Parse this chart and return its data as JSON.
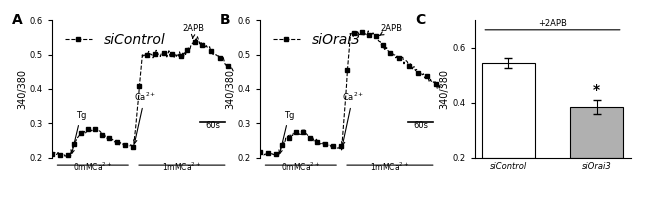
{
  "panel_A": {
    "label": "A",
    "legend": "siControl",
    "ylim": [
      0.2,
      0.6
    ],
    "yticks": [
      0.2,
      0.3,
      0.4,
      0.5,
      0.6
    ],
    "ylabel": "340/380",
    "scale_bar": "60s"
  },
  "panel_B": {
    "label": "B",
    "legend": "siOrai3",
    "ylim": [
      0.2,
      0.6
    ],
    "yticks": [
      0.2,
      0.3,
      0.4,
      0.5,
      0.6
    ],
    "ylabel": "340/380",
    "scale_bar": "60s"
  },
  "panel_C": {
    "label": "C",
    "ylabel": "340/380",
    "ylim": [
      0.2,
      0.7
    ],
    "yticks": [
      0.2,
      0.4,
      0.6
    ],
    "categories": [
      "siControl",
      "siOrai3"
    ],
    "values": [
      0.545,
      0.385
    ],
    "errors": [
      0.018,
      0.025
    ],
    "bar_colors": [
      "white",
      "#b0b0b0"
    ],
    "bar_edgecolor": "black",
    "annotation": "+2APB",
    "star": "*"
  }
}
